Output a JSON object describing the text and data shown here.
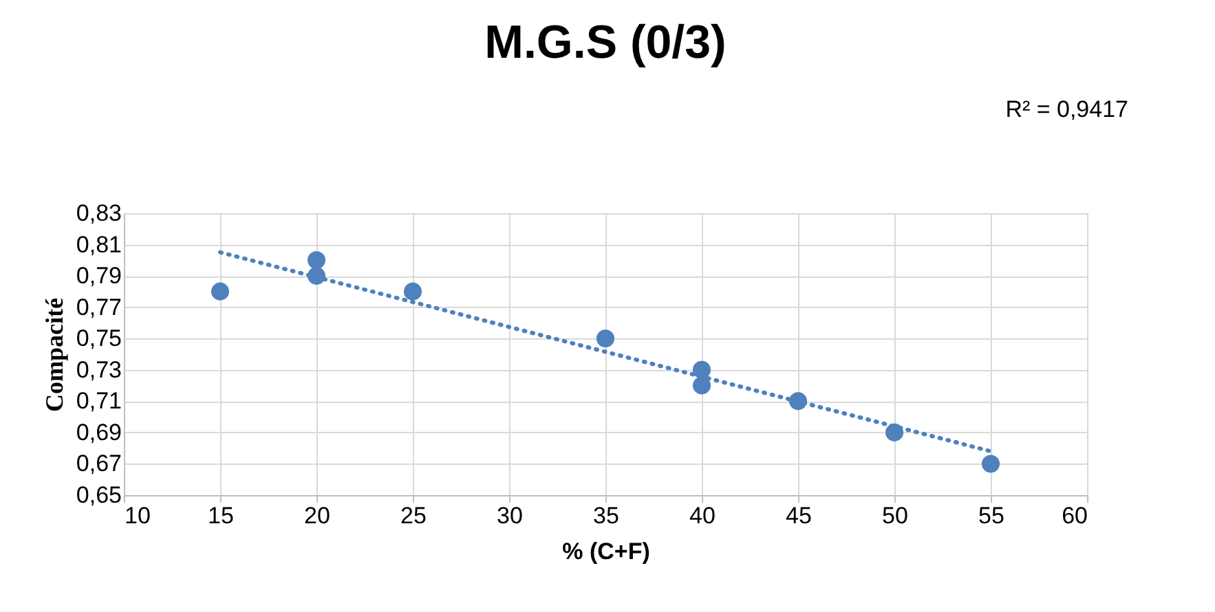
{
  "chart_data": {
    "type": "scatter",
    "title": "M.G.S (0/3)",
    "xlabel": "% (C+F)",
    "ylabel": "Compacité",
    "annotations": [
      "R² = 0,9417"
    ],
    "x": [
      15,
      20,
      20,
      25,
      35,
      40,
      40,
      45,
      50,
      55
    ],
    "series": [
      {
        "color": "#4f81bd",
        "values": [
          0.78,
          0.8,
          0.79,
          0.78,
          0.75,
          0.73,
          0.72,
          0.71,
          0.69,
          0.67
        ],
        "marker": "circle"
      },
      {
        "type": "line",
        "color": "#4f81bd",
        "x": [
          15,
          55
        ],
        "values": [
          0.805,
          0.678
        ],
        "line_style": "dotted",
        "marker": "none"
      }
    ],
    "xlim": [
      10,
      60
    ],
    "xticks": [
      10,
      15,
      20,
      25,
      30,
      35,
      40,
      45,
      50,
      55,
      60
    ],
    "ylim": [
      0.65,
      0.83
    ],
    "yticks": [
      {
        "value": 0.65,
        "label": "0,65"
      },
      {
        "value": 0.67,
        "label": "0,67"
      },
      {
        "value": 0.69,
        "label": "0,69"
      },
      {
        "value": 0.71,
        "label": "0,71"
      },
      {
        "value": 0.73,
        "label": "0,73"
      },
      {
        "value": 0.75,
        "label": "0,75"
      },
      {
        "value": 0.77,
        "label": "0,77"
      },
      {
        "value": 0.79,
        "label": "0,79"
      },
      {
        "value": 0.81,
        "label": "0,81"
      },
      {
        "value": 0.83,
        "label": "0,83"
      }
    ],
    "grid": true
  }
}
